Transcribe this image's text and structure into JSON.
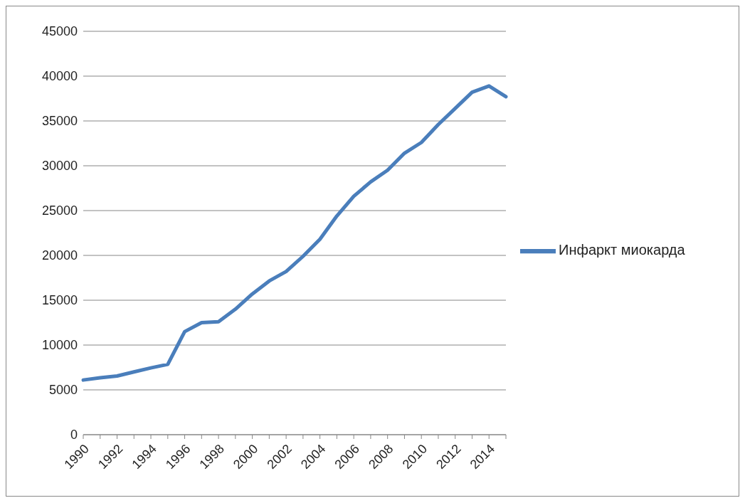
{
  "chart_data": {
    "type": "line",
    "categories": [
      "1990",
      null,
      "1992",
      null,
      "1994",
      null,
      "1996",
      null,
      "1998",
      null,
      "2000",
      null,
      "2002",
      null,
      "2004",
      null,
      "2006",
      null,
      "2008",
      null,
      "2010",
      null,
      "2012",
      null,
      "2014",
      null
    ],
    "series": [
      {
        "name": "Инфаркт миокарда",
        "color": "#4a7ebb",
        "values": [
          6100,
          6350,
          6550,
          7000,
          7450,
          7850,
          11500,
          12500,
          12600,
          14000,
          15700,
          17150,
          18200,
          19900,
          21800,
          24400,
          26600,
          28200,
          29500,
          31400,
          32600,
          34600,
          36400,
          38200,
          38900,
          37700
        ]
      }
    ],
    "ylim": [
      0,
      45000
    ],
    "yticks": [
      0,
      5000,
      10000,
      15000,
      20000,
      25000,
      30000,
      35000,
      40000,
      45000
    ],
    "grid": "y",
    "legend": "right",
    "marker": "none",
    "line_style": "solid"
  }
}
